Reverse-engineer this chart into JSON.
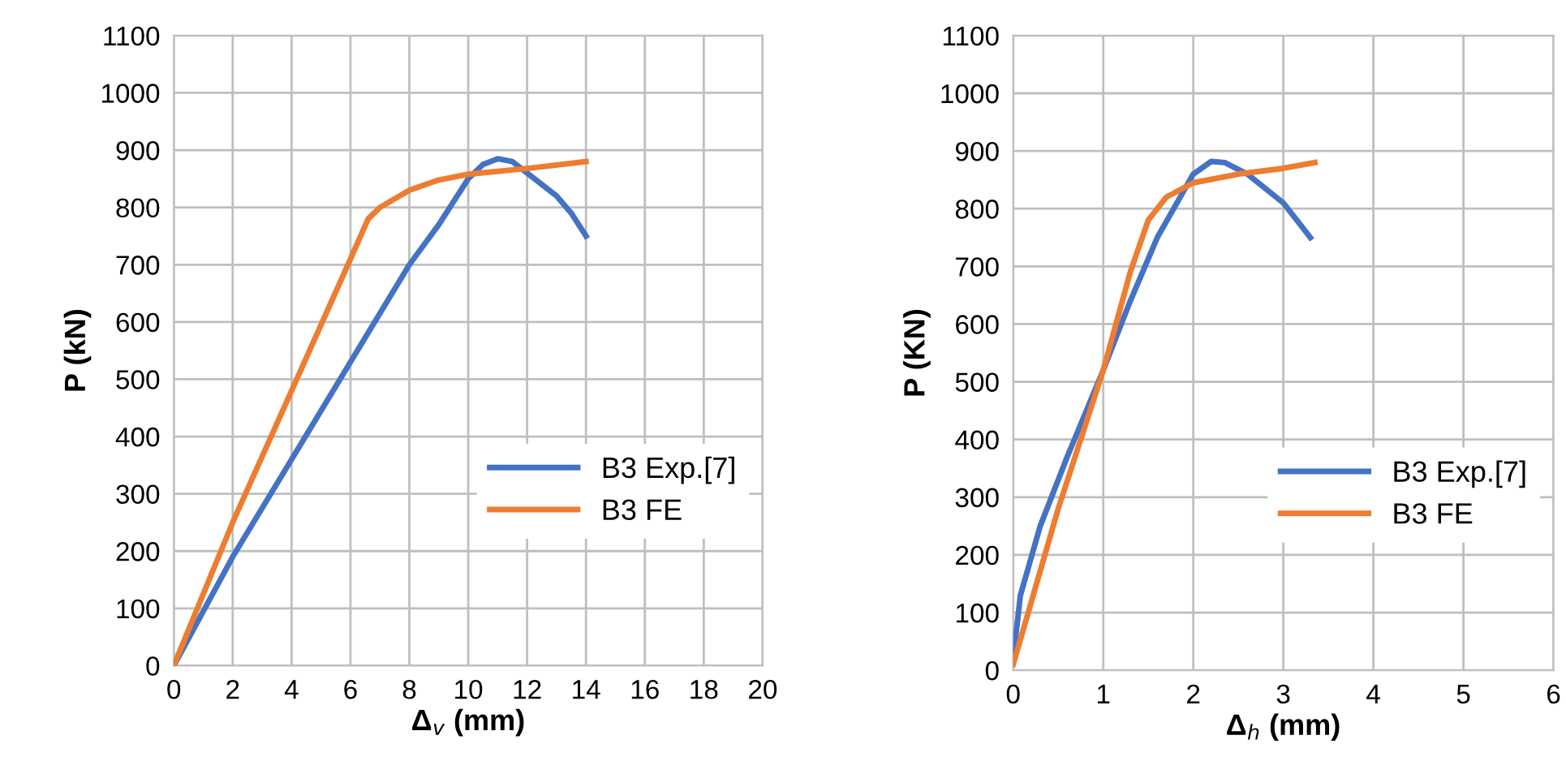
{
  "chart_data": [
    {
      "type": "line",
      "xlabel": "Δ$_{v}$ (mm)",
      "ylabel": "P (kN)",
      "xlim": [
        0,
        20
      ],
      "xticks": [
        0,
        2,
        4,
        6,
        8,
        10,
        12,
        14,
        16,
        18,
        20
      ],
      "ylim": [
        0,
        1100
      ],
      "yticks": [
        0,
        100,
        200,
        300,
        400,
        500,
        600,
        700,
        800,
        900,
        1000,
        1100
      ],
      "grid": true,
      "legend": "lower right",
      "series": [
        {
          "name": "B3 Exp.[7]",
          "color": "#4472c4",
          "x": [
            0,
            2,
            4,
            6,
            8,
            9,
            10,
            10.5,
            11,
            11.5,
            12,
            13,
            13.5,
            14
          ],
          "values": [
            0,
            190,
            360,
            530,
            700,
            770,
            850,
            875,
            885,
            880,
            860,
            820,
            790,
            750
          ]
        },
        {
          "name": "B3 FE",
          "color": "#ed7d31",
          "x": [
            0,
            2,
            4,
            6,
            6.6,
            7,
            8,
            9,
            10,
            12,
            14
          ],
          "values": [
            0,
            250,
            480,
            710,
            780,
            800,
            830,
            848,
            858,
            868,
            880
          ]
        }
      ]
    },
    {
      "type": "line",
      "xlabel": "Δ$_{h}$ (mm)",
      "ylabel": "P (KN)",
      "xlim": [
        0,
        6
      ],
      "xticks": [
        0,
        1,
        2,
        3,
        4,
        5,
        6
      ],
      "ylim": [
        0,
        1100
      ],
      "yticks": [
        0,
        100,
        200,
        300,
        400,
        500,
        600,
        700,
        800,
        900,
        1000,
        1100
      ],
      "grid": true,
      "legend": "lower right",
      "series": [
        {
          "name": "B3 Exp.[7]",
          "color": "#4472c4",
          "x": [
            0,
            0.08,
            0.3,
            0.6,
            1,
            1.3,
            1.6,
            2,
            2.2,
            2.35,
            2.6,
            3,
            3.15,
            3.3
          ],
          "values": [
            20,
            130,
            250,
            370,
            520,
            640,
            750,
            860,
            882,
            880,
            860,
            810,
            780,
            750
          ]
        },
        {
          "name": "B3 FE",
          "color": "#ed7d31",
          "x": [
            0,
            0.5,
            1,
            1.3,
            1.5,
            1.7,
            2,
            2.5,
            3,
            3.35
          ],
          "values": [
            10,
            280,
            520,
            690,
            780,
            820,
            845,
            860,
            870,
            880
          ]
        }
      ]
    }
  ]
}
